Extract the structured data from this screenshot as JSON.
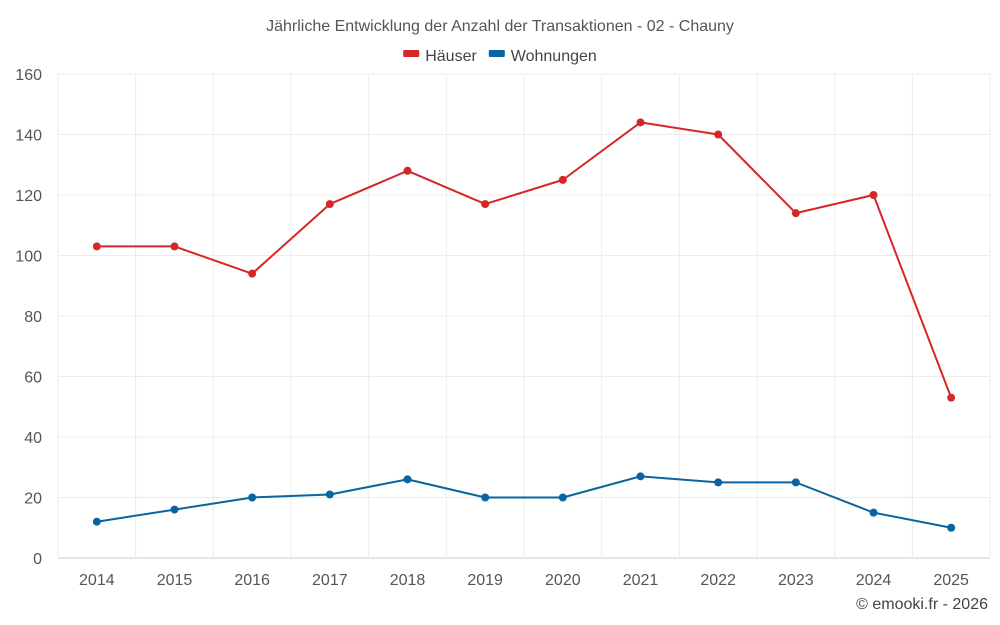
{
  "chart_data": {
    "type": "line",
    "title": "Jährliche Entwicklung der Anzahl der Transaktionen - 02 - Chauny",
    "categories": [
      "2014",
      "2015",
      "2016",
      "2017",
      "2018",
      "2019",
      "2020",
      "2021",
      "2022",
      "2023",
      "2024",
      "2025"
    ],
    "series": [
      {
        "name": "Häuser",
        "color": "#d62728",
        "values": [
          103,
          103,
          94,
          117,
          128,
          117,
          125,
          144,
          140,
          114,
          120,
          53
        ]
      },
      {
        "name": "Wohnungen",
        "color": "#0a64a0",
        "values": [
          12,
          16,
          20,
          21,
          26,
          20,
          20,
          27,
          25,
          25,
          15,
          10
        ]
      }
    ],
    "ylim": [
      0,
      160
    ],
    "yticks": [
      0,
      20,
      40,
      60,
      80,
      100,
      120,
      140,
      160
    ],
    "xlabel": "",
    "ylabel": "",
    "grid": true,
    "legend": "top-center"
  },
  "credit": "© emooki.fr - 2026"
}
